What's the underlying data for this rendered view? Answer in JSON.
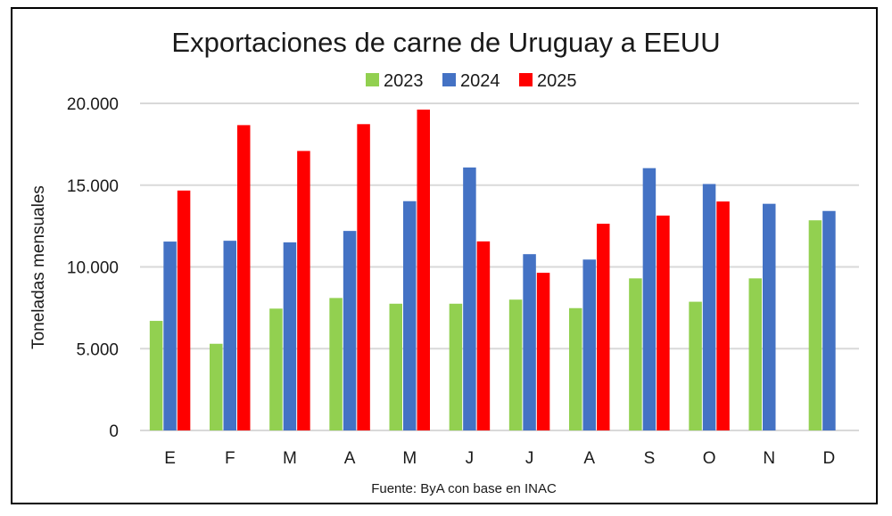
{
  "chart_data": {
    "type": "bar",
    "title": "Exportaciones de carne de Uruguay a EEUU",
    "xlabel": "",
    "ylabel": "Toneladas mensuales",
    "source": "Fuente: ByA con base en INAC",
    "categories": [
      "E",
      "F",
      "M",
      "A",
      "M",
      "J",
      "J",
      "A",
      "S",
      "O",
      "N",
      "D"
    ],
    "ylim": [
      0,
      20000
    ],
    "yticks": [
      0,
      5000,
      10000,
      15000,
      20000
    ],
    "ytick_labels": [
      "0",
      "5.000",
      "10.000",
      "15.000",
      "20.000"
    ],
    "grid": true,
    "legend_position": "top-center",
    "series": [
      {
        "name": "2023",
        "color": "#92D050",
        "values": [
          6700,
          5300,
          7450,
          8100,
          7750,
          7750,
          8000,
          7480,
          9300,
          7870,
          9300,
          12850
        ]
      },
      {
        "name": "2024",
        "color": "#4472C4",
        "values": [
          11550,
          11600,
          11500,
          12200,
          14020,
          16080,
          10780,
          10450,
          16040,
          15070,
          13860,
          13420
        ]
      },
      {
        "name": "2025",
        "color": "#FF0000",
        "values": [
          14670,
          18670,
          17090,
          18730,
          19620,
          11560,
          9640,
          12640,
          13140,
          14000,
          null,
          null
        ]
      }
    ]
  }
}
